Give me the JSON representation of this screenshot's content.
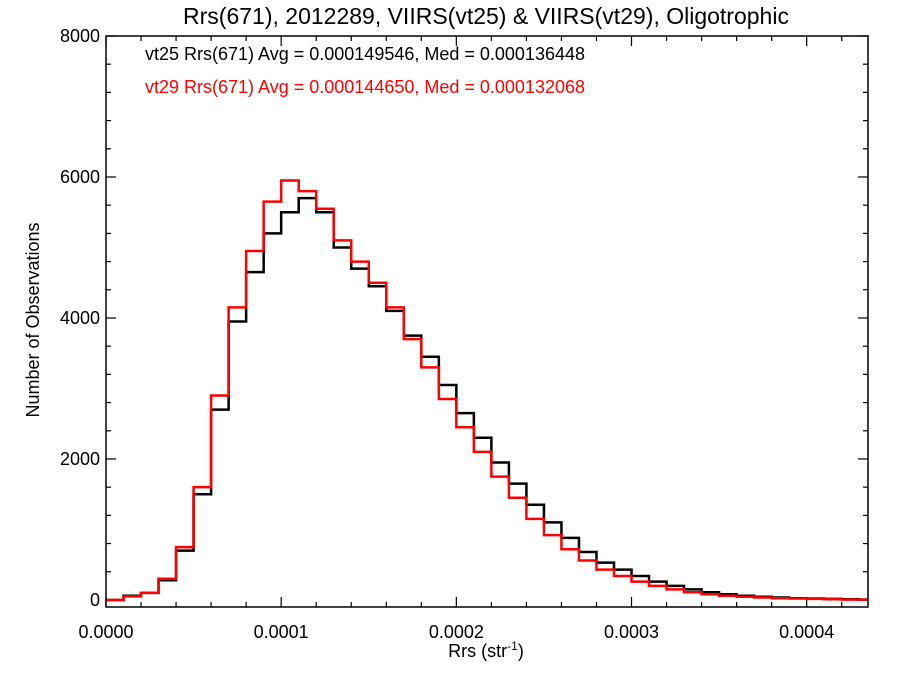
{
  "chart_data": {
    "type": "line",
    "title": "Rrs(671), 2012289, VIIRS(vt25) & VIIRS(vt29), Oligotrophic",
    "xlabel": "Rrs (str",
    "xlabel_superscript": "-1",
    "xlabel_suffix": ")",
    "ylabel": "Number of Observations",
    "xlim": [
      0.0,
      0.000435
    ],
    "ylim": [
      -100,
      8000
    ],
    "x_ticks": [
      "0.0000",
      "0.0001",
      "0.0002",
      "0.0003",
      "0.0004"
    ],
    "x_tick_values": [
      0.0,
      0.0001,
      0.0002,
      0.0003,
      0.0004
    ],
    "y_ticks": [
      "0",
      "2000",
      "4000",
      "6000",
      "8000"
    ],
    "y_tick_values": [
      0,
      2000,
      4000,
      6000,
      8000
    ],
    "grid": false,
    "legend_position": "top-left",
    "annotations": [
      "vt25 Rrs(671) Avg = 0.000149546, Med = 0.000136448",
      "vt29 Rrs(671) Avg = 0.000144650, Med = 0.000132068"
    ],
    "series": [
      {
        "color": "#000000",
        "points": [
          [
            0.0,
            0
          ],
          [
            1e-05,
            60
          ],
          [
            2e-05,
            100
          ],
          [
            3e-05,
            280
          ],
          [
            4e-05,
            700
          ],
          [
            5e-05,
            1500
          ],
          [
            6e-05,
            2700
          ],
          [
            7e-05,
            3950
          ],
          [
            8e-05,
            4650
          ],
          [
            9e-05,
            5200
          ],
          [
            0.0001,
            5500
          ],
          [
            0.00011,
            5700
          ],
          [
            0.00012,
            5500
          ],
          [
            0.00013,
            5000
          ],
          [
            0.00014,
            4700
          ],
          [
            0.00015,
            4450
          ],
          [
            0.00016,
            4100
          ],
          [
            0.00017,
            3750
          ],
          [
            0.00018,
            3450
          ],
          [
            0.00019,
            3050
          ],
          [
            0.0002,
            2650
          ],
          [
            0.00021,
            2300
          ],
          [
            0.00022,
            1950
          ],
          [
            0.00023,
            1650
          ],
          [
            0.00024,
            1350
          ],
          [
            0.00025,
            1100
          ],
          [
            0.00026,
            880
          ],
          [
            0.00027,
            680
          ],
          [
            0.00028,
            530
          ],
          [
            0.00029,
            430
          ],
          [
            0.0003,
            340
          ],
          [
            0.00031,
            260
          ],
          [
            0.00032,
            200
          ],
          [
            0.00033,
            150
          ],
          [
            0.00034,
            110
          ],
          [
            0.00035,
            80
          ],
          [
            0.00036,
            60
          ],
          [
            0.00037,
            45
          ],
          [
            0.00038,
            35
          ],
          [
            0.00039,
            25
          ],
          [
            0.0004,
            20
          ],
          [
            0.00041,
            15
          ],
          [
            0.00042,
            10
          ],
          [
            0.00043,
            5
          ]
        ]
      },
      {
        "color": "#ff0000",
        "points": [
          [
            0.0,
            0
          ],
          [
            1e-05,
            50
          ],
          [
            2e-05,
            100
          ],
          [
            3e-05,
            300
          ],
          [
            4e-05,
            750
          ],
          [
            5e-05,
            1600
          ],
          [
            6e-05,
            2900
          ],
          [
            7e-05,
            4150
          ],
          [
            8e-05,
            4950
          ],
          [
            9e-05,
            5650
          ],
          [
            0.0001,
            5950
          ],
          [
            0.00011,
            5800
          ],
          [
            0.00012,
            5550
          ],
          [
            0.00013,
            5100
          ],
          [
            0.00014,
            4800
          ],
          [
            0.00015,
            4500
          ],
          [
            0.00016,
            4150
          ],
          [
            0.00017,
            3700
          ],
          [
            0.00018,
            3300
          ],
          [
            0.00019,
            2850
          ],
          [
            0.0002,
            2450
          ],
          [
            0.00021,
            2100
          ],
          [
            0.00022,
            1750
          ],
          [
            0.00023,
            1450
          ],
          [
            0.00024,
            1150
          ],
          [
            0.00025,
            920
          ],
          [
            0.00026,
            720
          ],
          [
            0.00027,
            560
          ],
          [
            0.00028,
            430
          ],
          [
            0.00029,
            340
          ],
          [
            0.0003,
            260
          ],
          [
            0.00031,
            200
          ],
          [
            0.00032,
            150
          ],
          [
            0.00033,
            110
          ],
          [
            0.00034,
            80
          ],
          [
            0.00035,
            60
          ],
          [
            0.00036,
            45
          ],
          [
            0.00037,
            35
          ],
          [
            0.00038,
            25
          ],
          [
            0.00039,
            20
          ],
          [
            0.0004,
            15
          ],
          [
            0.00041,
            10
          ],
          [
            0.00042,
            5
          ],
          [
            0.00043,
            5
          ]
        ]
      }
    ]
  }
}
